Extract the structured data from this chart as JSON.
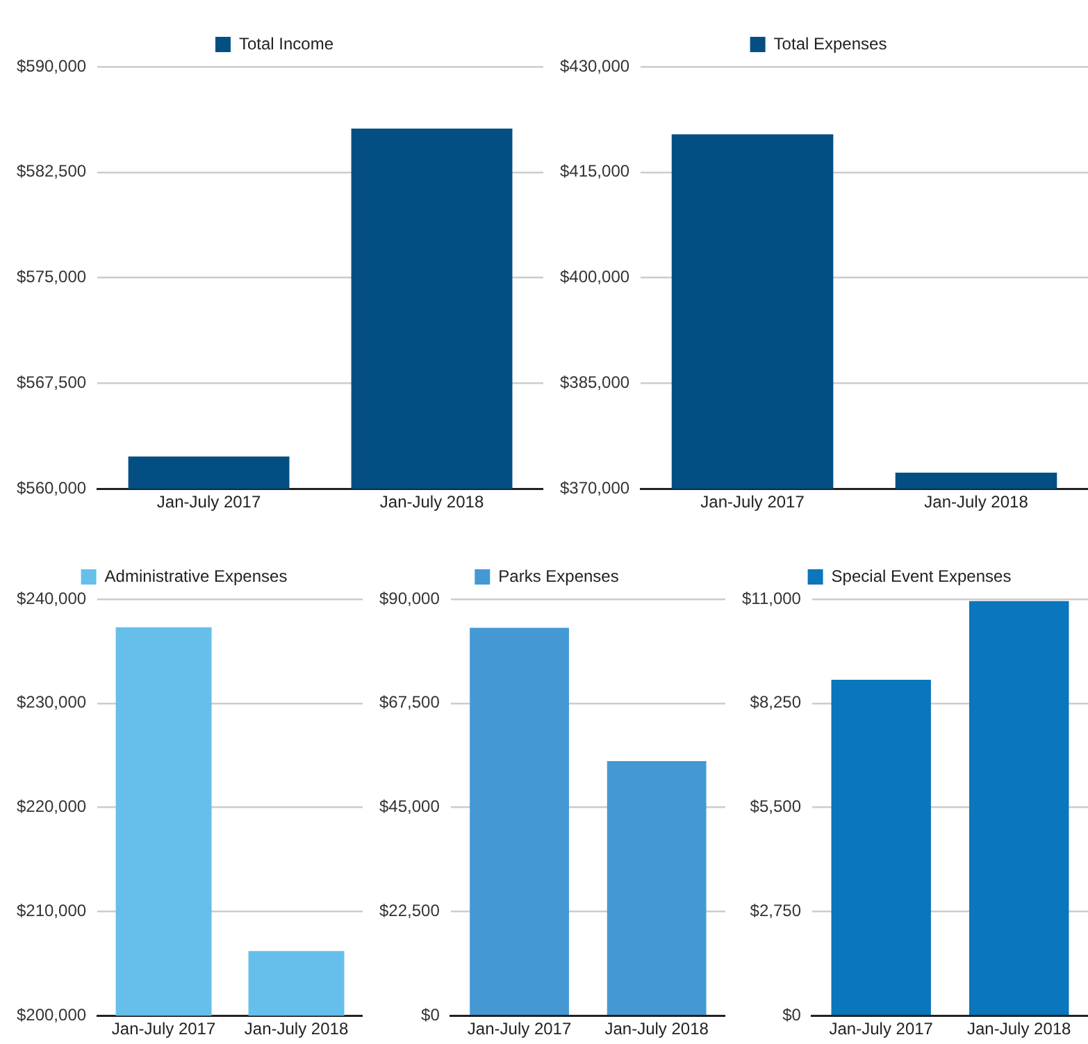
{
  "chart_data": [
    {
      "type": "bar",
      "categories": [
        "Jan-July 2017",
        "Jan-July 2018"
      ],
      "series": [
        {
          "name": "Total Income",
          "color": "#034f84",
          "values": [
            562300,
            585600
          ]
        }
      ],
      "ylim": [
        560000,
        590000
      ],
      "yticks": [
        {
          "value": 560000,
          "label": "$560,000"
        },
        {
          "value": 567500,
          "label": "$567,500"
        },
        {
          "value": 575000,
          "label": "$575,000"
        },
        {
          "value": 582500,
          "label": "$582,500"
        },
        {
          "value": 590000,
          "label": "$590,000"
        }
      ],
      "grid": "y",
      "legend": "top"
    },
    {
      "type": "bar",
      "categories": [
        "Jan-July 2017",
        "Jan-July 2018"
      ],
      "series": [
        {
          "name": "Total Expenses",
          "color": "#034f84",
          "values": [
            420400,
            372300
          ]
        }
      ],
      "ylim": [
        370000,
        430000
      ],
      "yticks": [
        {
          "value": 370000,
          "label": "$370,000"
        },
        {
          "value": 385000,
          "label": "$385,000"
        },
        {
          "value": 400000,
          "label": "$400,000"
        },
        {
          "value": 415000,
          "label": "$415,000"
        },
        {
          "value": 430000,
          "label": "$430,000"
        }
      ],
      "grid": "y",
      "legend": "top"
    },
    {
      "type": "bar",
      "categories": [
        "Jan-July 2017",
        "Jan-July 2018"
      ],
      "series": [
        {
          "name": "Administrative Expenses",
          "color": "#66bfeb",
          "values": [
            237300,
            206200
          ]
        }
      ],
      "ylim": [
        200000,
        240000
      ],
      "yticks": [
        {
          "value": 200000,
          "label": "$200,000"
        },
        {
          "value": 210000,
          "label": "$210,000"
        },
        {
          "value": 220000,
          "label": "$220,000"
        },
        {
          "value": 230000,
          "label": "$230,000"
        },
        {
          "value": 240000,
          "label": "$240,000"
        }
      ],
      "grid": "y",
      "legend": "top"
    },
    {
      "type": "bar",
      "categories": [
        "Jan-July 2017",
        "Jan-July 2018"
      ],
      "series": [
        {
          "name": "Parks Expenses",
          "color": "#4499d4",
          "values": [
            83800,
            55000
          ]
        }
      ],
      "ylim": [
        0,
        90000
      ],
      "yticks": [
        {
          "value": 0,
          "label": "$0"
        },
        {
          "value": 22500,
          "label": "$22,500"
        },
        {
          "value": 45000,
          "label": "$45,000"
        },
        {
          "value": 67500,
          "label": "$67,500"
        },
        {
          "value": 90000,
          "label": "$90,000"
        }
      ],
      "grid": "y",
      "legend": "top"
    },
    {
      "type": "bar",
      "categories": [
        "Jan-July 2017",
        "Jan-July 2018"
      ],
      "series": [
        {
          "name": "Special Event Expenses",
          "color": "#0a76bb",
          "values": [
            8870,
            10950
          ]
        }
      ],
      "ylim": [
        0,
        11000
      ],
      "yticks": [
        {
          "value": 0,
          "label": "$0"
        },
        {
          "value": 2750,
          "label": "$2,750"
        },
        {
          "value": 5500,
          "label": "$5,500"
        },
        {
          "value": 8250,
          "label": "$8,250"
        },
        {
          "value": 11000,
          "label": "$11,000"
        }
      ],
      "grid": "y",
      "legend": "top"
    }
  ]
}
